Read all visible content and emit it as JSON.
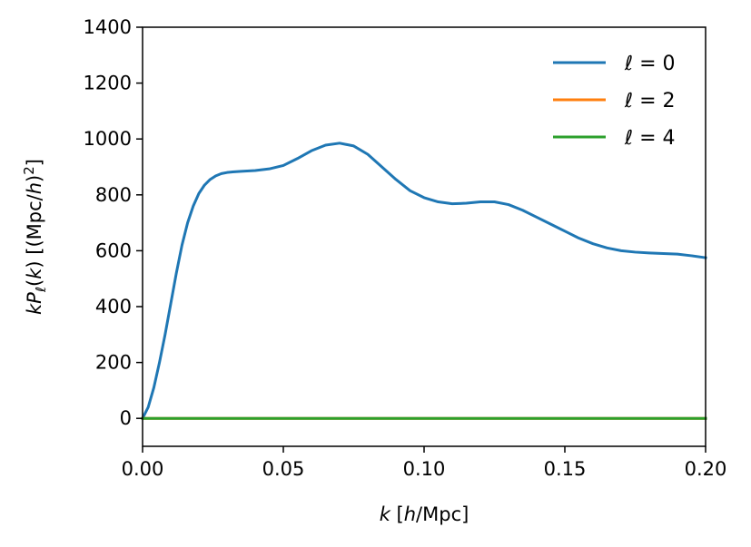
{
  "chart_data": {
    "type": "line",
    "xlabel": "k [h/Mpc]",
    "ylabel": "kPℓ(k) [(Mpc/h)²]",
    "xlim": [
      0.0,
      0.2
    ],
    "ylim": [
      -100,
      1400
    ],
    "xticks": [
      "0.00",
      "0.05",
      "0.10",
      "0.15",
      "0.20"
    ],
    "xtick_values": [
      0.0,
      0.05,
      0.1,
      0.15,
      0.2
    ],
    "yticks": [
      "0",
      "200",
      "400",
      "600",
      "800",
      "1000",
      "1200",
      "1400"
    ],
    "ytick_values": [
      0,
      200,
      400,
      600,
      800,
      1000,
      1200,
      1400
    ],
    "grid": false,
    "legend_position": "top-right",
    "colors": [
      "#1f77b4",
      "#ff7f0e",
      "#2ca02c"
    ],
    "series": [
      {
        "name": "ℓ = 0",
        "x": [
          0.0,
          0.002,
          0.004,
          0.006,
          0.008,
          0.01,
          0.012,
          0.014,
          0.016,
          0.018,
          0.02,
          0.022,
          0.024,
          0.026,
          0.028,
          0.03,
          0.032,
          0.035,
          0.04,
          0.045,
          0.05,
          0.055,
          0.06,
          0.065,
          0.07,
          0.075,
          0.08,
          0.085,
          0.09,
          0.095,
          0.1,
          0.105,
          0.11,
          0.115,
          0.12,
          0.125,
          0.13,
          0.135,
          0.14,
          0.145,
          0.15,
          0.155,
          0.16,
          0.165,
          0.17,
          0.175,
          0.18,
          0.185,
          0.19,
          0.195,
          0.2
        ],
        "y": [
          0,
          40,
          110,
          200,
          300,
          410,
          520,
          620,
          700,
          760,
          805,
          835,
          855,
          868,
          876,
          880,
          882,
          884,
          887,
          893,
          905,
          930,
          958,
          978,
          985,
          975,
          945,
          900,
          855,
          815,
          790,
          775,
          768,
          770,
          775,
          775,
          765,
          745,
          720,
          695,
          670,
          645,
          625,
          610,
          600,
          595,
          592,
          590,
          588,
          582,
          575
        ]
      },
      {
        "name": "ℓ = 2",
        "x": [
          0.0,
          0.2
        ],
        "y": [
          0,
          0
        ]
      },
      {
        "name": "ℓ = 4",
        "x": [
          0.0,
          0.2
        ],
        "y": [
          0,
          0
        ]
      }
    ]
  }
}
